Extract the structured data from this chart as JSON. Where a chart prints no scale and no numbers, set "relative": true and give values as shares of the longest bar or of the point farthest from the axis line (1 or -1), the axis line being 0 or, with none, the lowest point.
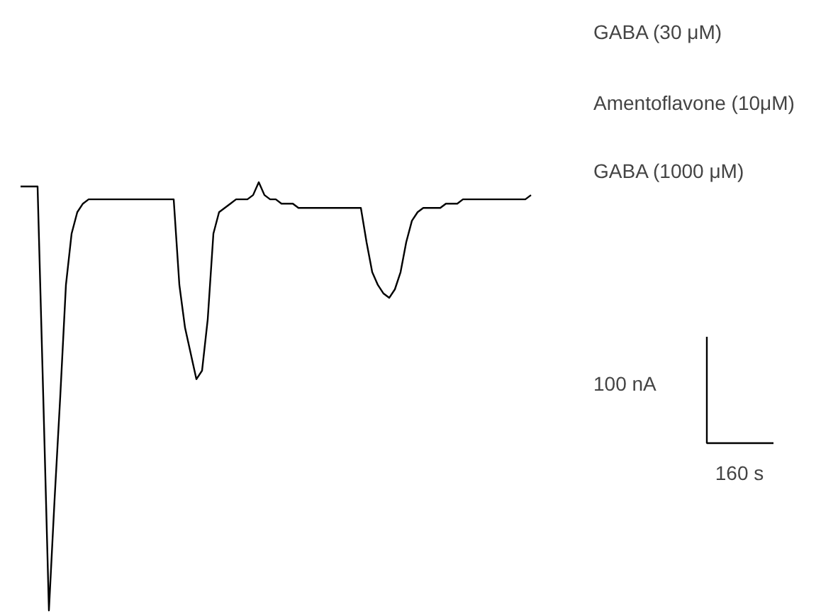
{
  "chart_data": {
    "type": "line",
    "relative": true,
    "categories": [
      null,
      null,
      null,
      null,
      null,
      null,
      null,
      null,
      null,
      null,
      null,
      null,
      null,
      null,
      null,
      null,
      null,
      null,
      null,
      null,
      null,
      null,
      null,
      null,
      null,
      null,
      null,
      null,
      null,
      null,
      null,
      null,
      null,
      null,
      null,
      null,
      null,
      null,
      null,
      null,
      null,
      null,
      null,
      null,
      null,
      null,
      null,
      null,
      null,
      null,
      null,
      null,
      null,
      null,
      null,
      null,
      null,
      null,
      null,
      null,
      null,
      null,
      null,
      null,
      null,
      null,
      null,
      null,
      null,
      null,
      null,
      null,
      null,
      null,
      null,
      null,
      null,
      null,
      null,
      null,
      null,
      null,
      null,
      null,
      null,
      null,
      null,
      null,
      null,
      null,
      null
    ],
    "series": [
      {
        "color": "#000000",
        "values": [
          0.99,
          0.99,
          0.99,
          0.99,
          0.5,
          0,
          0.26,
          0.5,
          0.76,
          0.88,
          0.93,
          0.95,
          0.96,
          0.96,
          0.96,
          0.96,
          0.96,
          0.96,
          0.96,
          0.96,
          0.96,
          0.96,
          0.96,
          0.96,
          0.96,
          0.96,
          0.96,
          0.96,
          0.76,
          0.66,
          0.6,
          0.54,
          0.56,
          0.68,
          0.88,
          0.93,
          0.94,
          0.95,
          0.96,
          0.96,
          0.96,
          0.97,
          1,
          0.97,
          0.96,
          0.96,
          0.95,
          0.95,
          0.95,
          0.94,
          0.94,
          0.94,
          0.94,
          0.94,
          0.94,
          0.94,
          0.94,
          0.94,
          0.94,
          0.94,
          0.94,
          0.86,
          0.79,
          0.76,
          0.74,
          0.73,
          0.75,
          0.79,
          0.86,
          0.91,
          0.93,
          0.94,
          0.94,
          0.94,
          0.94,
          0.95,
          0.95,
          0.95,
          0.96,
          0.96,
          0.96,
          0.96,
          0.96,
          0.96,
          0.96,
          0.96,
          0.96,
          0.96,
          0.96,
          0.96,
          0.97
        ]
      }
    ],
    "annotations": [
      "GABA (30 μM)",
      "Amentoflavone (10μM)",
      "GABA (1000 μM)",
      "100 nA",
      "160 s"
    ]
  }
}
